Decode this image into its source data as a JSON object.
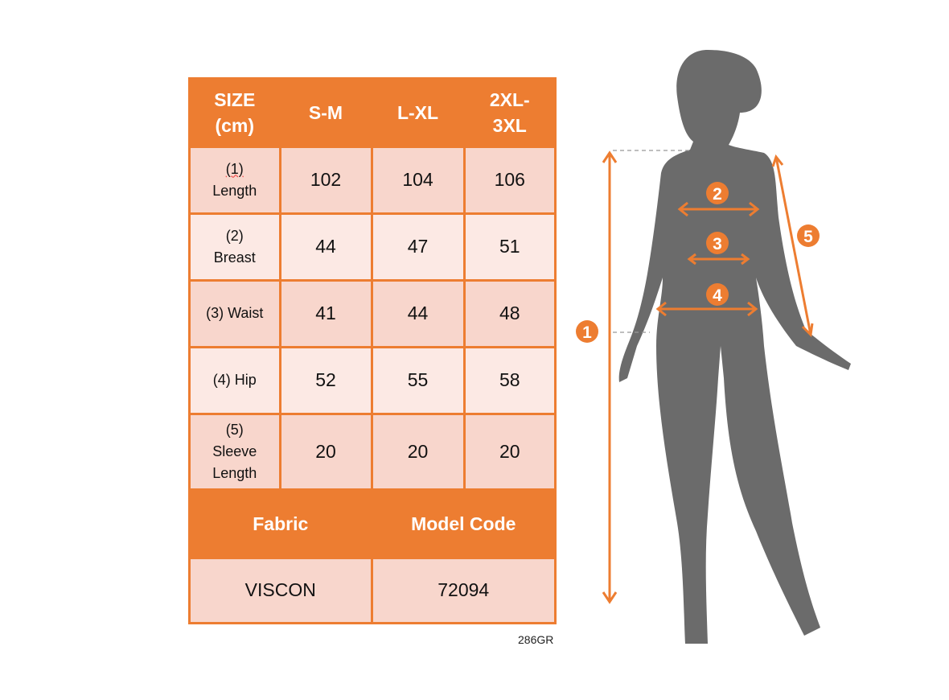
{
  "table": {
    "header": [
      "SIZE (cm)",
      "S-M",
      "L-XL",
      "2XL-3XL"
    ],
    "rows": [
      {
        "label": [
          "(1)",
          "Length"
        ],
        "values": [
          "102",
          "104",
          "106"
        ]
      },
      {
        "label": [
          "(2)",
          "Breast"
        ],
        "values": [
          "44",
          "47",
          "51"
        ]
      },
      {
        "label": [
          "(3) Waist"
        ],
        "values": [
          "41",
          "44",
          "48"
        ]
      },
      {
        "label": [
          "(4) Hip"
        ],
        "values": [
          "52",
          "55",
          "58"
        ]
      },
      {
        "label": [
          "(5)",
          "Sleeve",
          "Length"
        ],
        "values": [
          "20",
          "20",
          "20"
        ]
      }
    ],
    "footer_header": [
      "Fabric",
      "Model Code"
    ],
    "footer_values": [
      "VISCON",
      "72094"
    ]
  },
  "code": "286GR",
  "figure": {
    "markers": [
      "1",
      "2",
      "3",
      "4",
      "5"
    ]
  },
  "colors": {
    "accent": "#ed7d31",
    "row_dark": "#f8d6cc",
    "row_light": "#fce9e4",
    "silhouette": "#6b6b6b"
  }
}
